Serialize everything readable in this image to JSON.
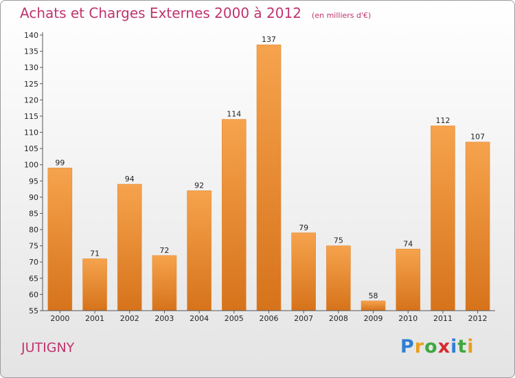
{
  "header": {
    "title": "Achats et Charges Externes 2000 à 2012",
    "subtitle": "(en milliers d'€)"
  },
  "location": "JUTIGNY",
  "brand": {
    "letters": [
      "P",
      "r",
      "o",
      "x",
      "i",
      "t",
      "i"
    ],
    "colors": [
      "#2f7fd6",
      "#e8a01c",
      "#3fa83f",
      "#d8272e",
      "#2f7fd6",
      "#3fa83f",
      "#e8a01c"
    ]
  },
  "colors": {
    "accent": "#c0336d",
    "bar_light": "#f6a34d",
    "bar_dark": "#d6731b"
  },
  "chart_data": {
    "type": "bar",
    "title": "Achats et Charges Externes 2000 à 2012",
    "subtitle": "(en milliers d'€)",
    "categories": [
      "2000",
      "2001",
      "2002",
      "2003",
      "2004",
      "2005",
      "2006",
      "2007",
      "2008",
      "2009",
      "2010",
      "2011",
      "2012"
    ],
    "values": [
      99,
      71,
      94,
      72,
      92,
      114,
      137,
      79,
      75,
      58,
      74,
      112,
      107
    ],
    "ylim": [
      55,
      140
    ],
    "yticks": [
      55,
      60,
      65,
      70,
      75,
      80,
      85,
      90,
      95,
      100,
      105,
      110,
      115,
      120,
      125,
      130,
      135,
      140
    ],
    "grid": false,
    "data_labels": true,
    "xlabel": "",
    "ylabel": ""
  }
}
